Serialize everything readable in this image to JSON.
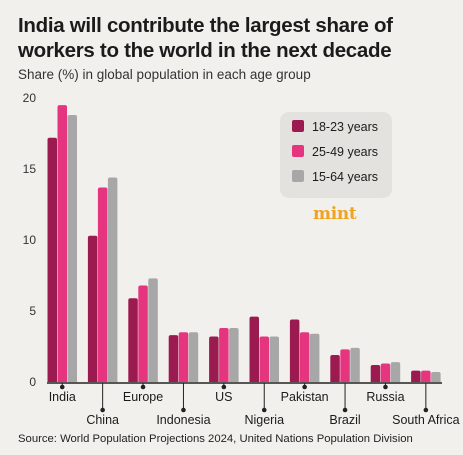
{
  "header": {
    "title": "India will contribute the largest share of workers to the world in the next decade",
    "subtitle": "Share (%) in global population in each age group"
  },
  "brand": {
    "logo_text": "mint",
    "color": "#f0a221"
  },
  "source": "Source: World Population Projections 2024, United Nations Population Division",
  "chart_data": {
    "type": "bar",
    "title": "India will contribute the largest share of workers to the world in the next decade",
    "subtitle": "Share (%) in global population in each age group",
    "xlabel": "",
    "ylabel": "",
    "ylim": [
      0,
      20
    ],
    "yticks": [
      0,
      5,
      10,
      15,
      20
    ],
    "grid": false,
    "legend_position": "top-right",
    "categories": [
      "India",
      "China",
      "Europe",
      "Indonesia",
      "US",
      "Nigeria",
      "Pakistan",
      "Brazil",
      "Russia",
      "South Africa"
    ],
    "series": [
      {
        "name": "18-23 years",
        "color": "#9b1b50",
        "values": [
          17.2,
          10.3,
          5.9,
          3.3,
          3.2,
          4.6,
          4.4,
          1.9,
          1.2,
          0.8
        ]
      },
      {
        "name": "25-49 years",
        "color": "#e6357f",
        "values": [
          19.5,
          13.7,
          6.8,
          3.5,
          3.8,
          3.2,
          3.5,
          2.3,
          1.3,
          0.8
        ]
      },
      {
        "name": "15-64 years",
        "color": "#a7a7a7",
        "values": [
          18.8,
          14.4,
          7.3,
          3.5,
          3.8,
          3.2,
          3.4,
          2.4,
          1.4,
          0.7
        ]
      }
    ]
  }
}
